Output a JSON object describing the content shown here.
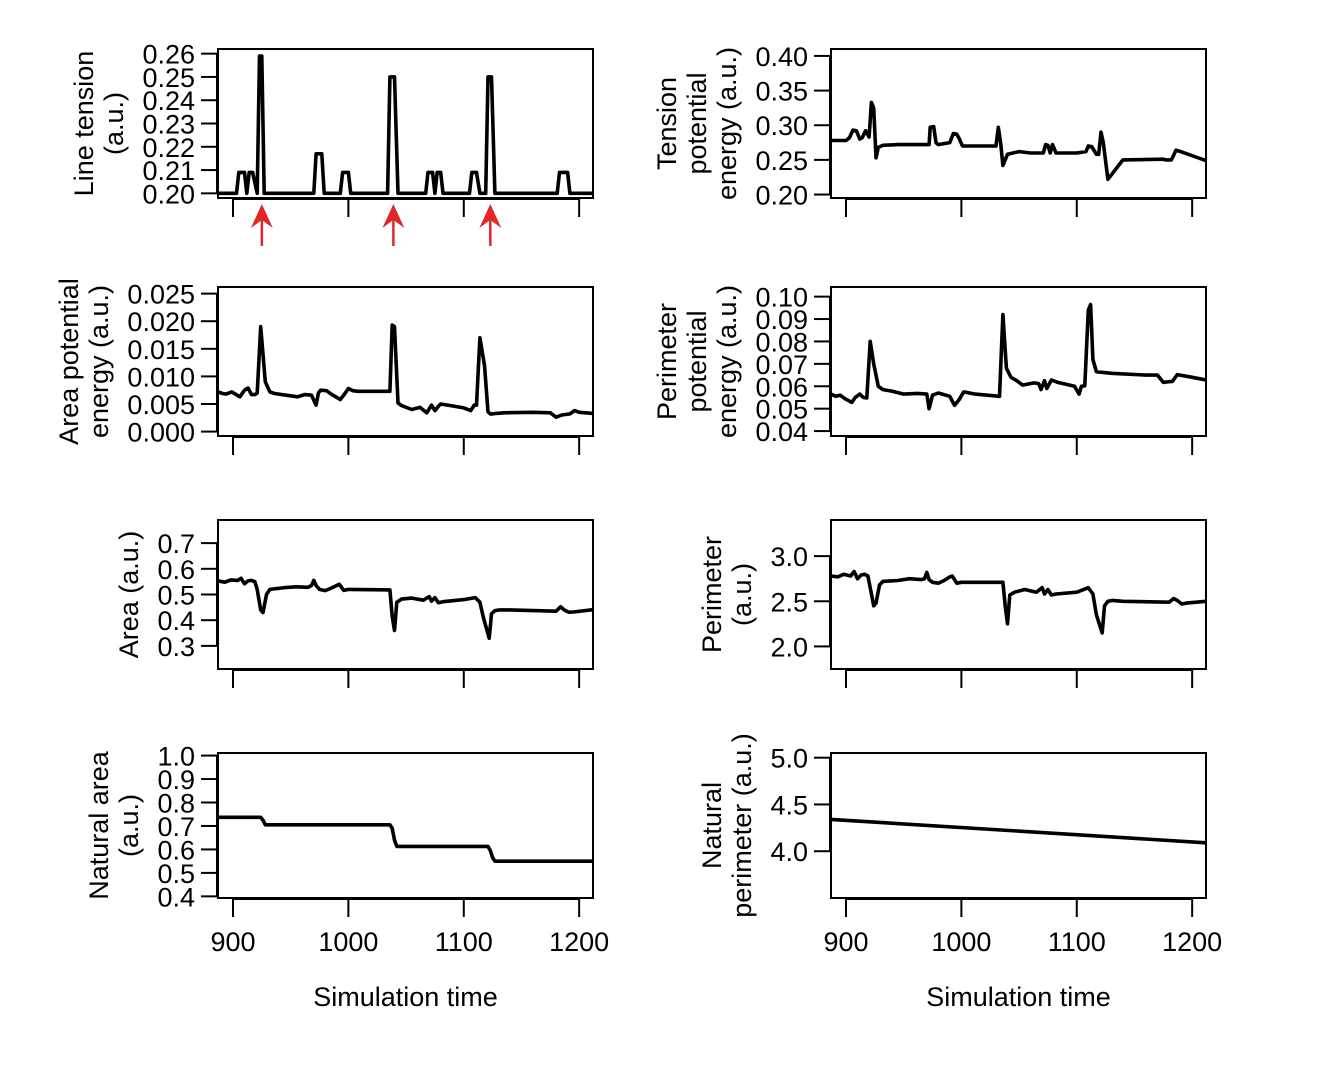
{
  "figure": {
    "xlabel": "Simulation time",
    "x_ticks": [
      900,
      1000,
      1100,
      1200
    ],
    "x_range": [
      887,
      1212
    ],
    "annotation_color": "#e0282b",
    "line_color": "#000000"
  },
  "chart_data": [
    {
      "id": "line-tension",
      "type": "line",
      "ylabel_lines": [
        "Line tension",
        "(a.u.)"
      ],
      "ylim": [
        0.198,
        0.262
      ],
      "y_ticks": [
        0.2,
        0.21,
        0.22,
        0.23,
        0.24,
        0.25,
        0.26
      ],
      "y_tick_labels": [
        "0.20",
        "0.21",
        "0.22",
        "0.23",
        "0.24",
        "0.25",
        "0.26"
      ],
      "show_x_tick_labels": false,
      "annotations": [
        {
          "type": "arrow",
          "x": 925
        },
        {
          "type": "arrow",
          "x": 1039
        },
        {
          "type": "arrow",
          "x": 1123
        }
      ],
      "x": [
        887,
        903,
        905,
        910,
        912,
        914,
        917,
        921,
        923,
        925,
        927,
        936,
        970,
        972,
        977,
        979,
        993,
        995,
        1000,
        1002,
        1034,
        1036,
        1040,
        1043,
        1067,
        1069,
        1073,
        1075,
        1077,
        1080,
        1082,
        1105,
        1107,
        1111,
        1114,
        1119,
        1121,
        1124,
        1127,
        1181,
        1183,
        1190,
        1192,
        1212
      ],
      "y": [
        0.2,
        0.2,
        0.209,
        0.209,
        0.2,
        0.209,
        0.209,
        0.2,
        0.259,
        0.259,
        0.2,
        0.2,
        0.2,
        0.217,
        0.217,
        0.2,
        0.2,
        0.209,
        0.209,
        0.2,
        0.2,
        0.25,
        0.25,
        0.2,
        0.2,
        0.209,
        0.209,
        0.2,
        0.209,
        0.209,
        0.2,
        0.2,
        0.209,
        0.209,
        0.2,
        0.2,
        0.25,
        0.25,
        0.2,
        0.2,
        0.209,
        0.209,
        0.2,
        0.2
      ]
    },
    {
      "id": "tension-potential-energy",
      "type": "line",
      "ylabel_lines": [
        "Tension",
        "potential",
        "energy (a.u.)"
      ],
      "ylim": [
        0.195,
        0.41
      ],
      "y_ticks": [
        0.2,
        0.25,
        0.3,
        0.35,
        0.4
      ],
      "y_tick_labels": [
        "0.20",
        "0.25",
        "0.30",
        "0.35",
        "0.40"
      ],
      "show_x_tick_labels": false,
      "x": [
        887,
        900,
        903,
        906,
        909,
        912,
        914,
        917,
        920,
        922,
        924,
        926,
        928,
        932,
        945,
        960,
        972,
        973,
        976,
        978,
        980,
        990,
        993,
        996,
        998,
        1001,
        1005,
        1030,
        1032,
        1034,
        1036,
        1040,
        1050,
        1060,
        1071,
        1073,
        1075,
        1077,
        1079,
        1082,
        1100,
        1108,
        1110,
        1113,
        1117,
        1119,
        1121,
        1123,
        1127,
        1140,
        1175,
        1177,
        1182,
        1186,
        1190,
        1212
      ],
      "y": [
        0.278,
        0.278,
        0.282,
        0.293,
        0.292,
        0.28,
        0.282,
        0.292,
        0.283,
        0.333,
        0.325,
        0.253,
        0.268,
        0.271,
        0.272,
        0.272,
        0.272,
        0.297,
        0.298,
        0.275,
        0.272,
        0.275,
        0.288,
        0.287,
        0.281,
        0.27,
        0.27,
        0.27,
        0.297,
        0.275,
        0.242,
        0.258,
        0.262,
        0.26,
        0.26,
        0.272,
        0.271,
        0.26,
        0.272,
        0.26,
        0.26,
        0.262,
        0.27,
        0.269,
        0.258,
        0.258,
        0.29,
        0.275,
        0.222,
        0.25,
        0.251,
        0.25,
        0.25,
        0.264,
        0.262,
        0.249
      ]
    },
    {
      "id": "area-potential-energy",
      "type": "line",
      "ylabel_lines": [
        "Area potential",
        "energy (a.u.)"
      ],
      "ylim": [
        -0.0008,
        0.0262
      ],
      "y_ticks": [
        0.0,
        0.005,
        0.01,
        0.015,
        0.02,
        0.025
      ],
      "y_tick_labels": [
        "0.000",
        "0.005",
        "0.010",
        "0.015",
        "0.020",
        "0.025"
      ],
      "show_x_tick_labels": false,
      "x": [
        887,
        891,
        894,
        899,
        906,
        910,
        913,
        916,
        919,
        921,
        924,
        928,
        932,
        936,
        946,
        956,
        962,
        968,
        972,
        974,
        976,
        981,
        985,
        993,
        997,
        1000,
        1004,
        1008,
        1015,
        1036,
        1038,
        1040,
        1043,
        1046,
        1055,
        1062,
        1068,
        1072,
        1075,
        1078,
        1080,
        1086,
        1100,
        1106,
        1109,
        1111,
        1114,
        1118,
        1121,
        1123,
        1125,
        1128,
        1135,
        1160,
        1175,
        1180,
        1185,
        1192,
        1196,
        1200,
        1212
      ],
      "y": [
        0.0072,
        0.0069,
        0.0068,
        0.0072,
        0.0063,
        0.0075,
        0.0079,
        0.0067,
        0.0067,
        0.007,
        0.019,
        0.009,
        0.0072,
        0.0069,
        0.0066,
        0.0063,
        0.0067,
        0.0066,
        0.0048,
        0.007,
        0.0075,
        0.0074,
        0.0068,
        0.0058,
        0.0069,
        0.0078,
        0.0074,
        0.0073,
        0.0073,
        0.0073,
        0.0193,
        0.019,
        0.0052,
        0.0047,
        0.004,
        0.0044,
        0.0034,
        0.0048,
        0.0038,
        0.0046,
        0.005,
        0.0048,
        0.0043,
        0.0038,
        0.0048,
        0.0048,
        0.017,
        0.012,
        0.0036,
        0.0032,
        0.0032,
        0.0033,
        0.0034,
        0.0035,
        0.0034,
        0.0026,
        0.003,
        0.0032,
        0.0038,
        0.0035,
        0.0033
      ]
    },
    {
      "id": "perimeter-potential-energy",
      "type": "line",
      "ylabel_lines": [
        "Perimeter",
        "potential",
        "energy (a.u.)"
      ],
      "ylim": [
        0.0378,
        0.1043
      ],
      "y_ticks": [
        0.04,
        0.05,
        0.06,
        0.07,
        0.08,
        0.09,
        0.1
      ],
      "y_tick_labels": [
        "0.04",
        "0.05",
        "0.06",
        "0.07",
        "0.08",
        "0.09",
        "0.10"
      ],
      "show_x_tick_labels": false,
      "x": [
        887,
        891,
        895,
        899,
        905,
        908,
        912,
        915,
        918,
        921,
        924,
        928,
        932,
        940,
        950,
        962,
        970,
        972,
        975,
        980,
        990,
        994,
        998,
        1002,
        1012,
        1033,
        1036,
        1039,
        1043,
        1048,
        1053,
        1063,
        1067,
        1069,
        1072,
        1074,
        1078,
        1083,
        1098,
        1102,
        1104,
        1107,
        1110,
        1112,
        1114,
        1117,
        1130,
        1160,
        1170,
        1175,
        1183,
        1187,
        1200,
        1212
      ],
      "y": [
        0.0565,
        0.0555,
        0.056,
        0.0545,
        0.0528,
        0.055,
        0.0565,
        0.055,
        0.0548,
        0.08,
        0.07,
        0.06,
        0.0585,
        0.0578,
        0.0565,
        0.0568,
        0.0565,
        0.05,
        0.056,
        0.057,
        0.0555,
        0.0515,
        0.054,
        0.0575,
        0.0565,
        0.0555,
        0.092,
        0.068,
        0.064,
        0.0625,
        0.0605,
        0.0615,
        0.0612,
        0.0585,
        0.0625,
        0.059,
        0.0628,
        0.0618,
        0.06,
        0.0565,
        0.06,
        0.0602,
        0.094,
        0.0965,
        0.072,
        0.0665,
        0.0658,
        0.065,
        0.065,
        0.0617,
        0.0622,
        0.0652,
        0.064,
        0.0628
      ]
    },
    {
      "id": "area",
      "type": "line",
      "ylabel_lines": [
        "Area (a.u.)"
      ],
      "ylim": [
        0.21,
        0.79
      ],
      "y_ticks": [
        0.3,
        0.4,
        0.5,
        0.6,
        0.7
      ],
      "y_tick_labels": [
        "0.3",
        "0.4",
        "0.5",
        "0.6",
        "0.7"
      ],
      "show_x_tick_labels": false,
      "x": [
        887,
        893,
        898,
        904,
        907,
        910,
        913,
        916,
        919,
        921,
        924,
        926,
        929,
        932,
        945,
        955,
        965,
        968,
        970,
        972,
        975,
        980,
        985,
        990,
        992,
        996,
        1000,
        1036,
        1038,
        1040,
        1042,
        1046,
        1055,
        1065,
        1070,
        1072,
        1075,
        1078,
        1082,
        1100,
        1110,
        1114,
        1117,
        1122,
        1124,
        1127,
        1131,
        1140,
        1180,
        1184,
        1187,
        1191,
        1195,
        1212
      ],
      "y": [
        0.553,
        0.548,
        0.557,
        0.555,
        0.563,
        0.542,
        0.553,
        0.555,
        0.55,
        0.52,
        0.44,
        0.43,
        0.5,
        0.52,
        0.527,
        0.53,
        0.528,
        0.535,
        0.555,
        0.535,
        0.52,
        0.515,
        0.525,
        0.535,
        0.54,
        0.516,
        0.52,
        0.518,
        0.415,
        0.36,
        0.47,
        0.482,
        0.486,
        0.478,
        0.492,
        0.474,
        0.488,
        0.468,
        0.472,
        0.48,
        0.488,
        0.47,
        0.41,
        0.33,
        0.425,
        0.437,
        0.44,
        0.44,
        0.435,
        0.452,
        0.44,
        0.431,
        0.432,
        0.441
      ]
    },
    {
      "id": "perimeter",
      "type": "line",
      "ylabel_lines": [
        "Perimeter",
        "(a.u.)"
      ],
      "ylim": [
        1.75,
        3.4
      ],
      "y_ticks": [
        2.0,
        2.5,
        3.0
      ],
      "y_tick_labels": [
        "2.0",
        "2.5",
        "3.0"
      ],
      "show_x_tick_labels": false,
      "x": [
        887,
        893,
        898,
        904,
        907,
        910,
        913,
        916,
        919,
        921,
        924,
        926,
        929,
        932,
        945,
        955,
        965,
        968,
        970,
        972,
        975,
        980,
        985,
        990,
        992,
        996,
        1000,
        1036,
        1038,
        1040,
        1042,
        1046,
        1055,
        1065,
        1070,
        1072,
        1075,
        1078,
        1082,
        1100,
        1110,
        1114,
        1117,
        1122,
        1124,
        1127,
        1131,
        1140,
        1180,
        1184,
        1187,
        1191,
        1195,
        1212
      ],
      "y": [
        2.78,
        2.77,
        2.8,
        2.78,
        2.83,
        2.75,
        2.79,
        2.8,
        2.78,
        2.65,
        2.45,
        2.48,
        2.68,
        2.72,
        2.73,
        2.75,
        2.74,
        2.75,
        2.82,
        2.74,
        2.71,
        2.7,
        2.73,
        2.77,
        2.78,
        2.7,
        2.71,
        2.71,
        2.45,
        2.25,
        2.57,
        2.6,
        2.63,
        2.6,
        2.65,
        2.58,
        2.63,
        2.57,
        2.58,
        2.6,
        2.65,
        2.58,
        2.35,
        2.15,
        2.45,
        2.5,
        2.51,
        2.5,
        2.49,
        2.53,
        2.51,
        2.47,
        2.48,
        2.5
      ]
    },
    {
      "id": "natural-area",
      "type": "line",
      "ylabel_lines": [
        "Natural area",
        "(a.u.)"
      ],
      "ylim": [
        0.393,
        1.011
      ],
      "y_ticks": [
        0.4,
        0.5,
        0.6,
        0.7,
        0.8,
        0.9,
        1.0
      ],
      "y_tick_labels": [
        "0.4",
        "0.5",
        "0.6",
        "0.7",
        "0.8",
        "0.9",
        "1.0"
      ],
      "show_x_tick_labels": true,
      "x": [
        887,
        924,
        926,
        928,
        1036,
        1038,
        1040,
        1042,
        1121,
        1123,
        1125,
        1127,
        1212
      ],
      "y": [
        0.737,
        0.737,
        0.725,
        0.705,
        0.705,
        0.69,
        0.64,
        0.613,
        0.613,
        0.595,
        0.565,
        0.55,
        0.55
      ]
    },
    {
      "id": "natural-perimeter",
      "type": "line",
      "ylabel_lines": [
        "Natural",
        "perimeter (a.u.)"
      ],
      "ylim": [
        3.5,
        5.05
      ],
      "y_ticks": [
        4.0,
        4.5,
        5.0
      ],
      "y_tick_labels": [
        "4.0",
        "4.5",
        "5.0"
      ],
      "show_x_tick_labels": true,
      "x": [
        887,
        1212
      ],
      "y": [
        4.34,
        4.09
      ]
    }
  ]
}
